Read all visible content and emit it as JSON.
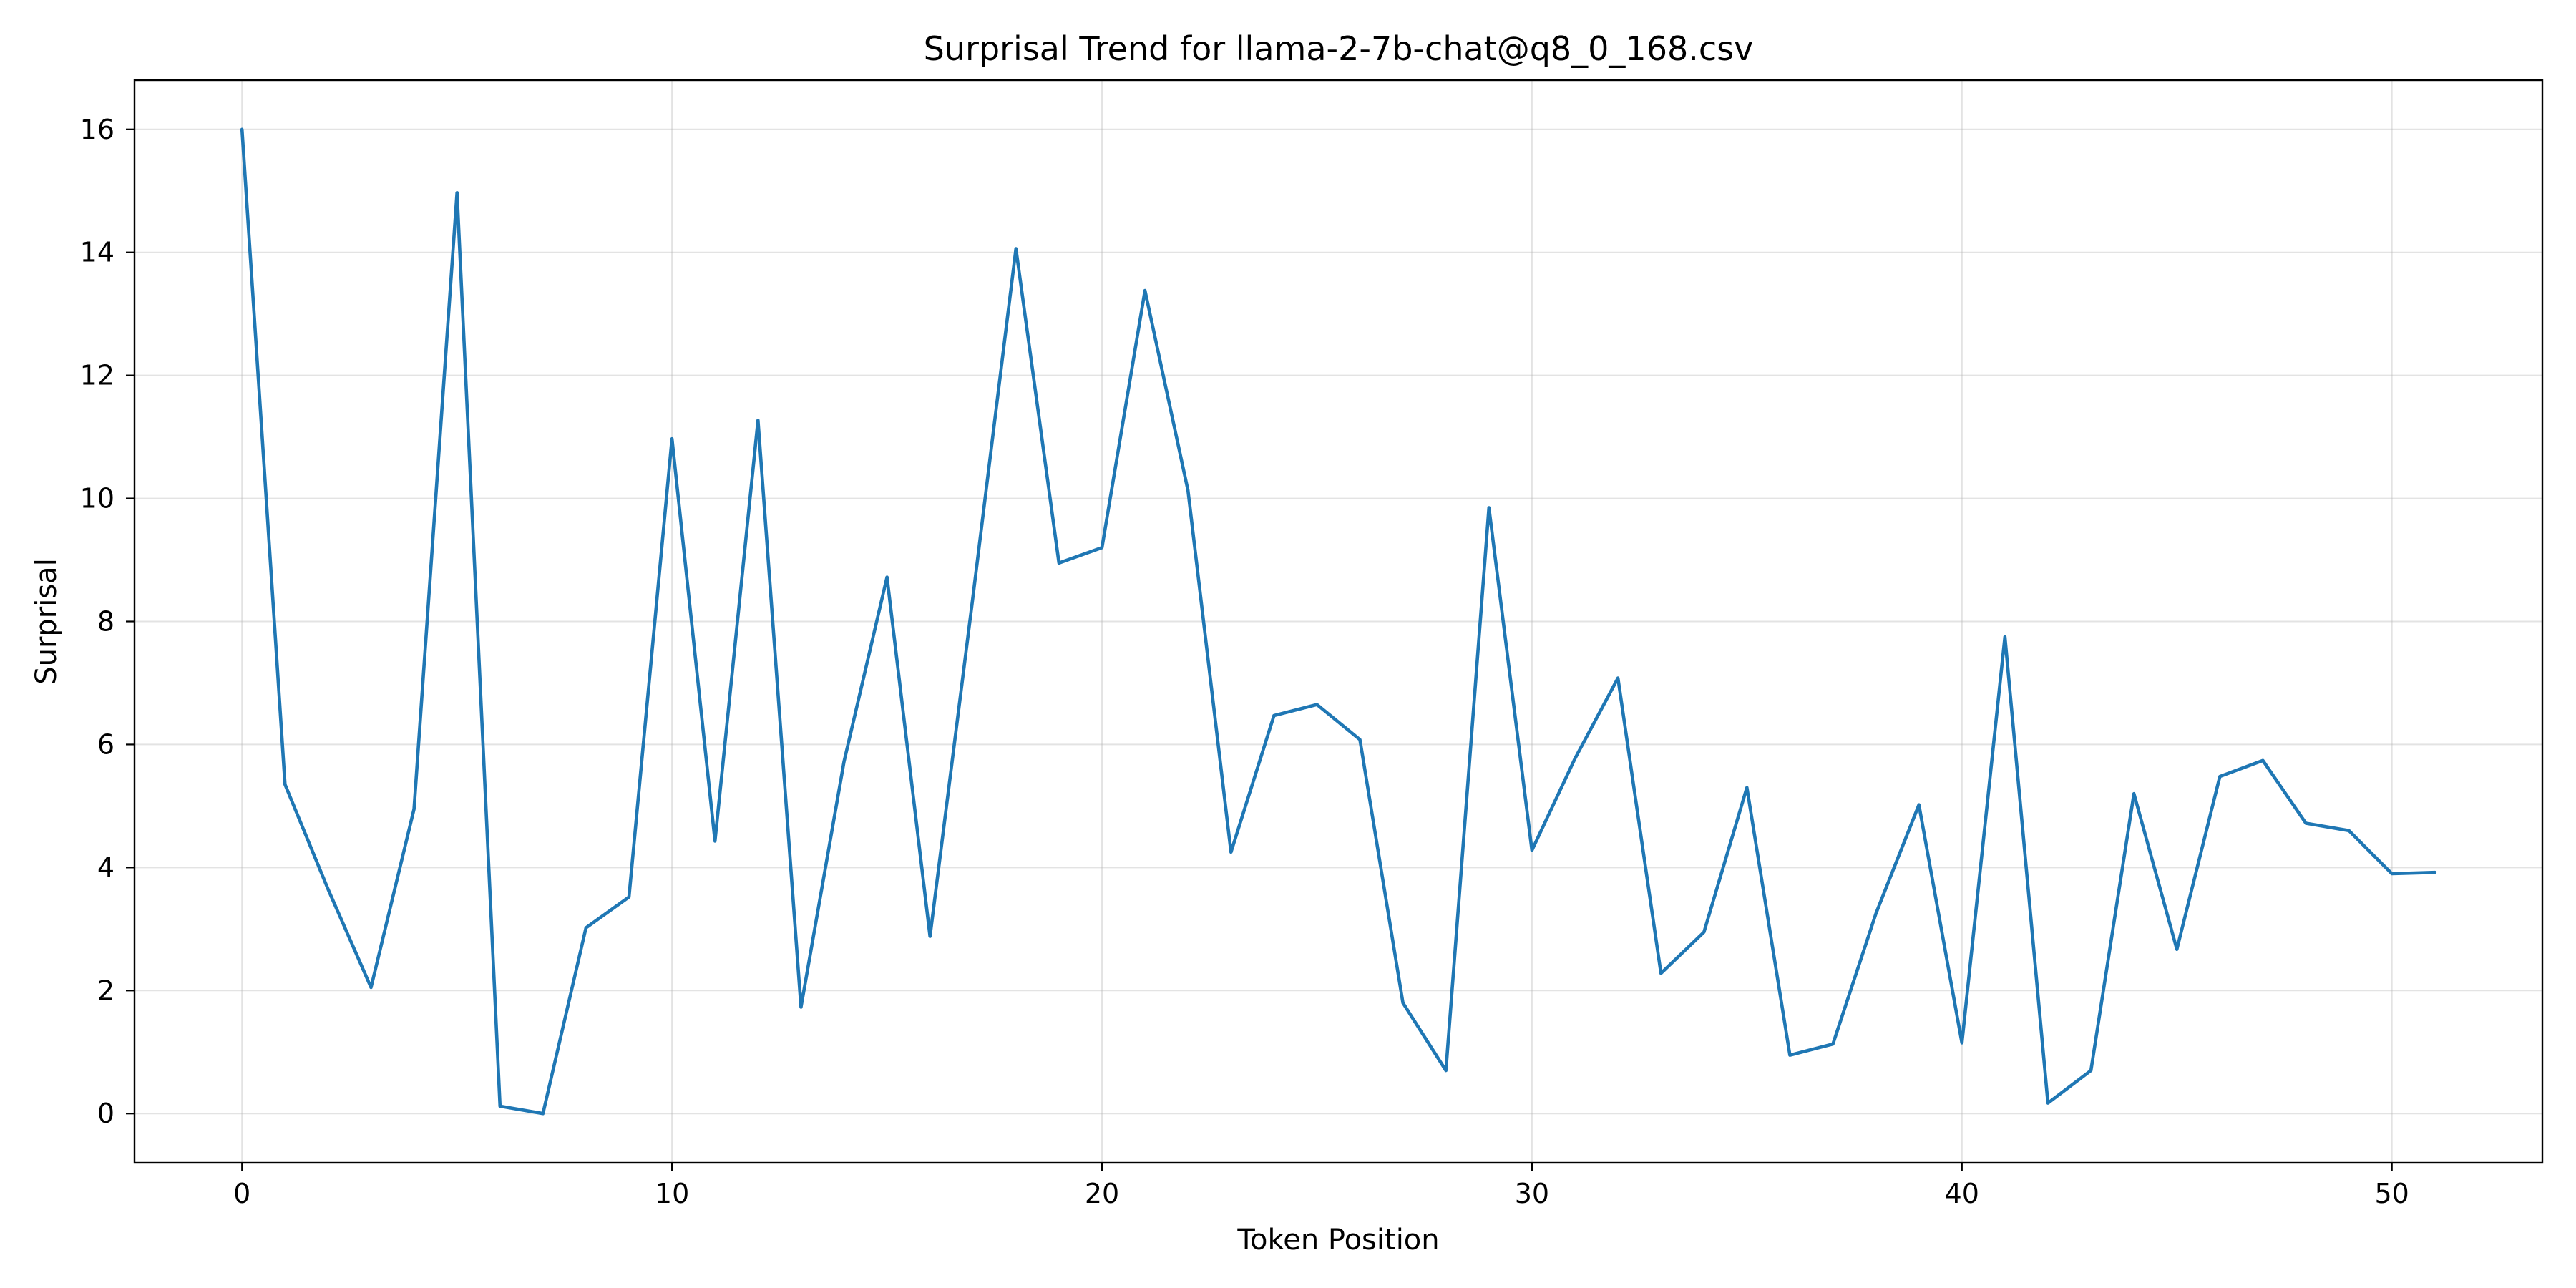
{
  "chart_data": {
    "type": "line",
    "title": "Surprisal Trend for llama-2-7b-chat@q8_0_168.csv",
    "xlabel": "Token Position",
    "ylabel": "Surprisal",
    "xlim": [
      -2.5,
      53.5
    ],
    "ylim": [
      -0.8,
      16.8
    ],
    "xticks": [
      0,
      10,
      20,
      30,
      40,
      50
    ],
    "yticks": [
      0,
      2,
      4,
      6,
      8,
      10,
      12,
      14,
      16
    ],
    "grid": true,
    "series": [
      {
        "color": "#1f77b4",
        "x": [
          0,
          1,
          2,
          3,
          4,
          5,
          6,
          7,
          8,
          9,
          10,
          11,
          12,
          13,
          14,
          15,
          16,
          17,
          18,
          19,
          20,
          21,
          22,
          23,
          24,
          25,
          26,
          27,
          28,
          29,
          30,
          31,
          32,
          33,
          34,
          35,
          36,
          37,
          38,
          39,
          40,
          41,
          42,
          43,
          44,
          45,
          46,
          47,
          48,
          49,
          50,
          51
        ],
        "y": [
          16.0,
          5.35,
          3.65,
          2.05,
          4.95,
          14.97,
          0.12,
          0.0,
          3.02,
          3.52,
          10.97,
          4.43,
          11.27,
          1.73,
          5.72,
          8.72,
          2.88,
          8.4,
          14.06,
          8.95,
          9.2,
          13.38,
          10.13,
          4.25,
          6.47,
          6.65,
          6.08,
          1.8,
          0.7,
          9.85,
          4.28,
          5.77,
          7.08,
          2.28,
          2.95,
          5.3,
          0.95,
          1.13,
          3.25,
          5.02,
          1.15,
          7.75,
          0.17,
          0.7,
          5.2,
          2.67,
          5.48,
          5.74,
          4.72,
          4.6,
          3.9,
          3.92
        ]
      }
    ]
  }
}
